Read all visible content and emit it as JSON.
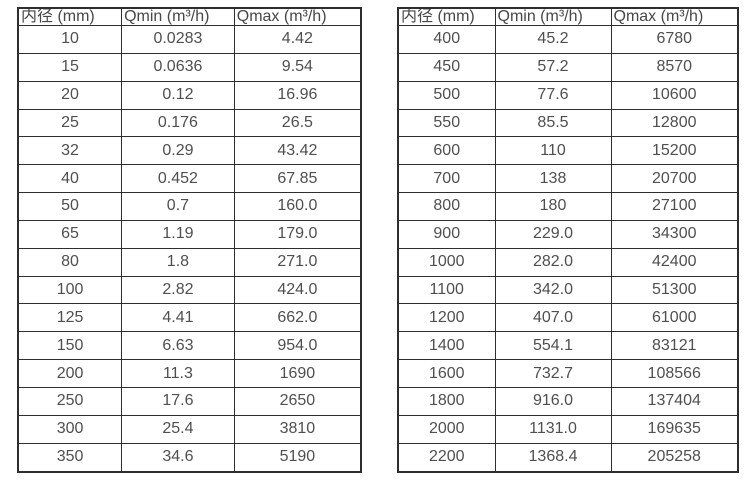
{
  "page": {
    "background_color": "#ffffff",
    "text_color": "#4f4f4f",
    "border_color": "#2e2e2e"
  },
  "tables": [
    {
      "name": "flow-rate-table-small-diameters",
      "headers": [
        "内径 (mm)",
        "Qmin (m³/h)",
        "Qmax (m³/h)"
      ],
      "rows": [
        [
          "10",
          "0.0283",
          "4.42"
        ],
        [
          "15",
          "0.0636",
          "9.54"
        ],
        [
          "20",
          "0.12",
          "16.96"
        ],
        [
          "25",
          "0.176",
          "26.5"
        ],
        [
          "32",
          "0.29",
          "43.42"
        ],
        [
          "40",
          "0.452",
          "67.85"
        ],
        [
          "50",
          "0.7",
          "160.0"
        ],
        [
          "65",
          "1.19",
          "179.0"
        ],
        [
          "80",
          "1.8",
          "271.0"
        ],
        [
          "100",
          "2.82",
          "424.0"
        ],
        [
          "125",
          "4.41",
          "662.0"
        ],
        [
          "150",
          "6.63",
          "954.0"
        ],
        [
          "200",
          "11.3",
          "1690"
        ],
        [
          "250",
          "17.6",
          "2650"
        ],
        [
          "300",
          "25.4",
          "3810"
        ],
        [
          "350",
          "34.6",
          "5190"
        ]
      ]
    },
    {
      "name": "flow-rate-table-large-diameters",
      "headers": [
        "内径 (mm)",
        "Qmin (m³/h)",
        "Qmax (m³/h)"
      ],
      "rows": [
        [
          "400",
          "45.2",
          "6780"
        ],
        [
          "450",
          "57.2",
          "8570"
        ],
        [
          "500",
          "77.6",
          "10600"
        ],
        [
          "550",
          "85.5",
          "12800"
        ],
        [
          "600",
          "110",
          "15200"
        ],
        [
          "700",
          "138",
          "20700"
        ],
        [
          "800",
          "180",
          "27100"
        ],
        [
          "900",
          "229.0",
          "34300"
        ],
        [
          "1000",
          "282.0",
          "42400"
        ],
        [
          "1100",
          "342.0",
          "51300"
        ],
        [
          "1200",
          "407.0",
          "61000"
        ],
        [
          "1400",
          "554.1",
          "83121"
        ],
        [
          "1600",
          "732.7",
          "108566"
        ],
        [
          "1800",
          "916.0",
          "137404"
        ],
        [
          "2000",
          "1131.0",
          "169635"
        ],
        [
          "2200",
          "1368.4",
          "205258"
        ]
      ]
    }
  ]
}
